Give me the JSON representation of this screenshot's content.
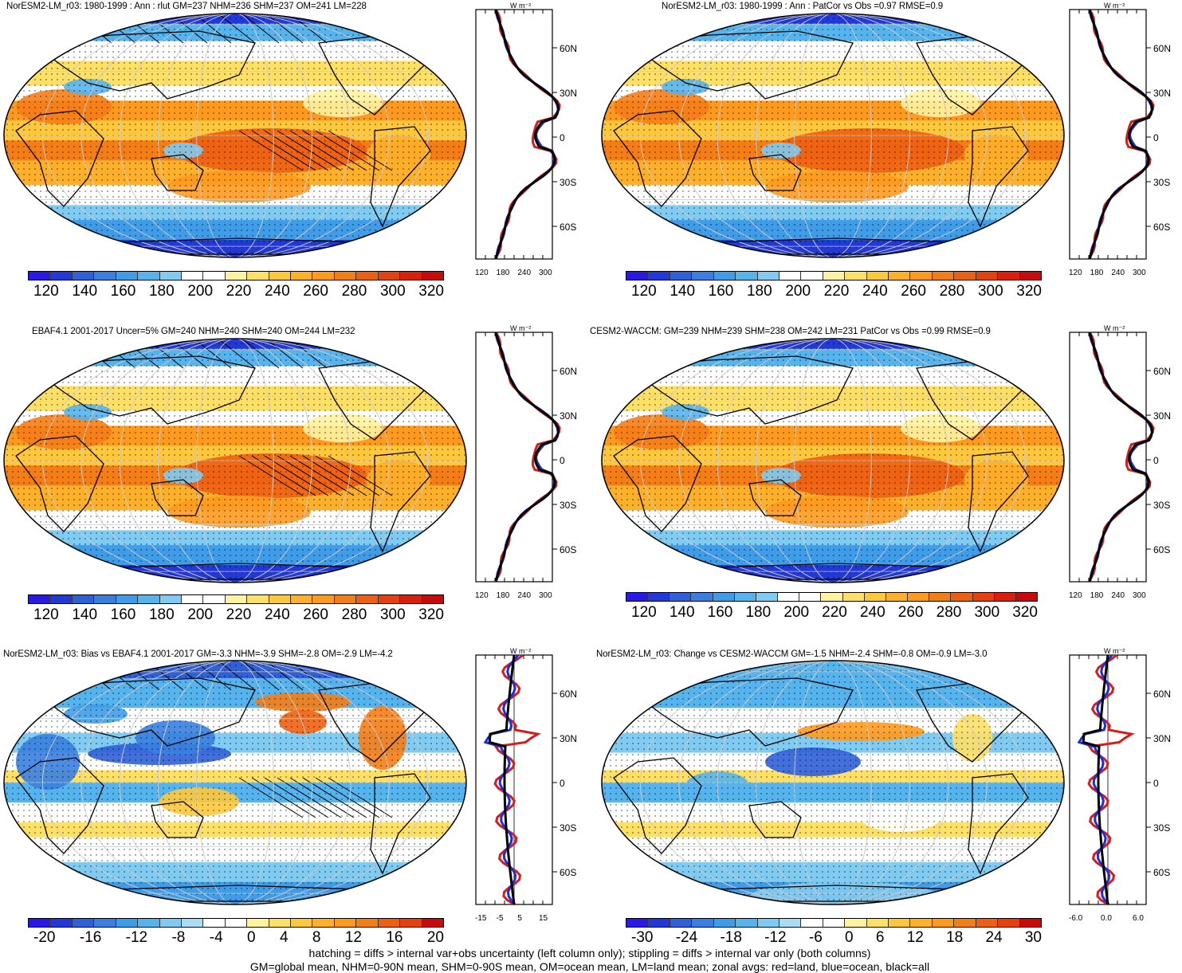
{
  "panels": [
    {
      "title": "NorESM2-LM_r03: 1980-1999 : Ann : rlut GM=237 NHM=236 SHM=237 OM=241 LM=228",
      "kind": "abs",
      "cbar": [
        "120",
        "140",
        "160",
        "180",
        "200",
        "220",
        "240",
        "260",
        "280",
        "300",
        "320"
      ],
      "zticks": [
        "120",
        "180",
        "240",
        "300"
      ],
      "hatch": true
    },
    {
      "title": "NorESM2-LM_r03: 1980-1999 : Ann : PatCor vs Obs =0.97 RMSE=0.9",
      "kind": "abs",
      "cbar": [
        "120",
        "140",
        "160",
        "180",
        "200",
        "220",
        "240",
        "260",
        "280",
        "300",
        "320"
      ],
      "zticks": [
        "120",
        "180",
        "240",
        "300"
      ],
      "hatch": false
    },
    {
      "title": "EBAF4.1 2001-2017 Uncer=5% GM=240 NHM=240 SHM=240 OM=244 LM=232",
      "kind": "abs",
      "cbar": [
        "120",
        "140",
        "160",
        "180",
        "200",
        "220",
        "240",
        "260",
        "280",
        "300",
        "320"
      ],
      "zticks": [
        "120",
        "180",
        "240",
        "300"
      ],
      "hatch": true
    },
    {
      "title": "CESM2-WACCM: GM=239 NHM=239 SHM=238 OM=242 LM=231 PatCor vs Obs =0.99 RMSE=0.9",
      "kind": "abs",
      "cbar": [
        "120",
        "140",
        "160",
        "180",
        "200",
        "220",
        "240",
        "260",
        "280",
        "300",
        "320"
      ],
      "zticks": [
        "120",
        "180",
        "240",
        "300"
      ],
      "hatch": false
    },
    {
      "title": "NorESM2-LM_r03: Bias vs EBAF4.1 2001-2017 GM=-3.3 NHM=-3.9 SHM=-2.8 OM=-2.9 LM=-4.2",
      "kind": "diff",
      "cbar": [
        "-20",
        "-16",
        "-12",
        "-8",
        "-4",
        "0",
        "4",
        "8",
        "12",
        "16",
        "20"
      ],
      "zticks": [
        "-15",
        "-5",
        "5",
        "15"
      ],
      "hatch": true
    },
    {
      "title": "NorESM2-LM_r03: Change vs CESM2-WACCM GM=-1.5 NHM=-2.4 SHM=-0.8 OM=-0.9 LM=-3.0",
      "kind": "diff",
      "cbar": [
        "-30",
        "-24",
        "-18",
        "-12",
        "-6",
        "0",
        "6",
        "12",
        "18",
        "24",
        "30"
      ],
      "zticks": [
        "-6.0",
        "0.0",
        "6.0"
      ],
      "hatch": false
    }
  ],
  "lat_labels": [
    "60N",
    "30N",
    "0",
    "30S",
    "60S"
  ],
  "zonal_unit": "W m⁻²",
  "colors": {
    "abs": [
      "#2a19e6",
      "#2338d8",
      "#2f5fd9",
      "#3a7fe0",
      "#3f9ce8",
      "#55b4ee",
      "#7fcbf2",
      "#ffffff",
      "#ffffff",
      "#fff3a0",
      "#ffe066",
      "#ffc83c",
      "#ffb02a",
      "#ff9a1f",
      "#f57d16",
      "#ee5f12",
      "#e6400f",
      "#dc1f0d",
      "#c80a0a"
    ],
    "diff": [
      "#2a19e6",
      "#2338d8",
      "#2f5fd9",
      "#3a7fe0",
      "#3f9ce8",
      "#55b4ee",
      "#7fcbf2",
      "#a9dcf5",
      "#ffffff",
      "#ffffff",
      "#fff3a0",
      "#ffe066",
      "#ffc83c",
      "#ffb02a",
      "#ff9a1f",
      "#f57d16",
      "#ee5f12",
      "#e6400f",
      "#c80a0a"
    ],
    "land_line": "#d81c1c",
    "ocean_line": "#1a2ee0",
    "all_line": "#000000"
  },
  "footer": {
    "line1": "hatching = diffs > internal var+obs uncertainty (left column only); stippling = diffs > internal var only (both columns)",
    "line2": "GM=global mean, NHM=0-90N mean, SHM=0-90S mean, OM=ocean mean, LM=land mean; zonal avgs: red=land, blue=ocean, black=all"
  }
}
